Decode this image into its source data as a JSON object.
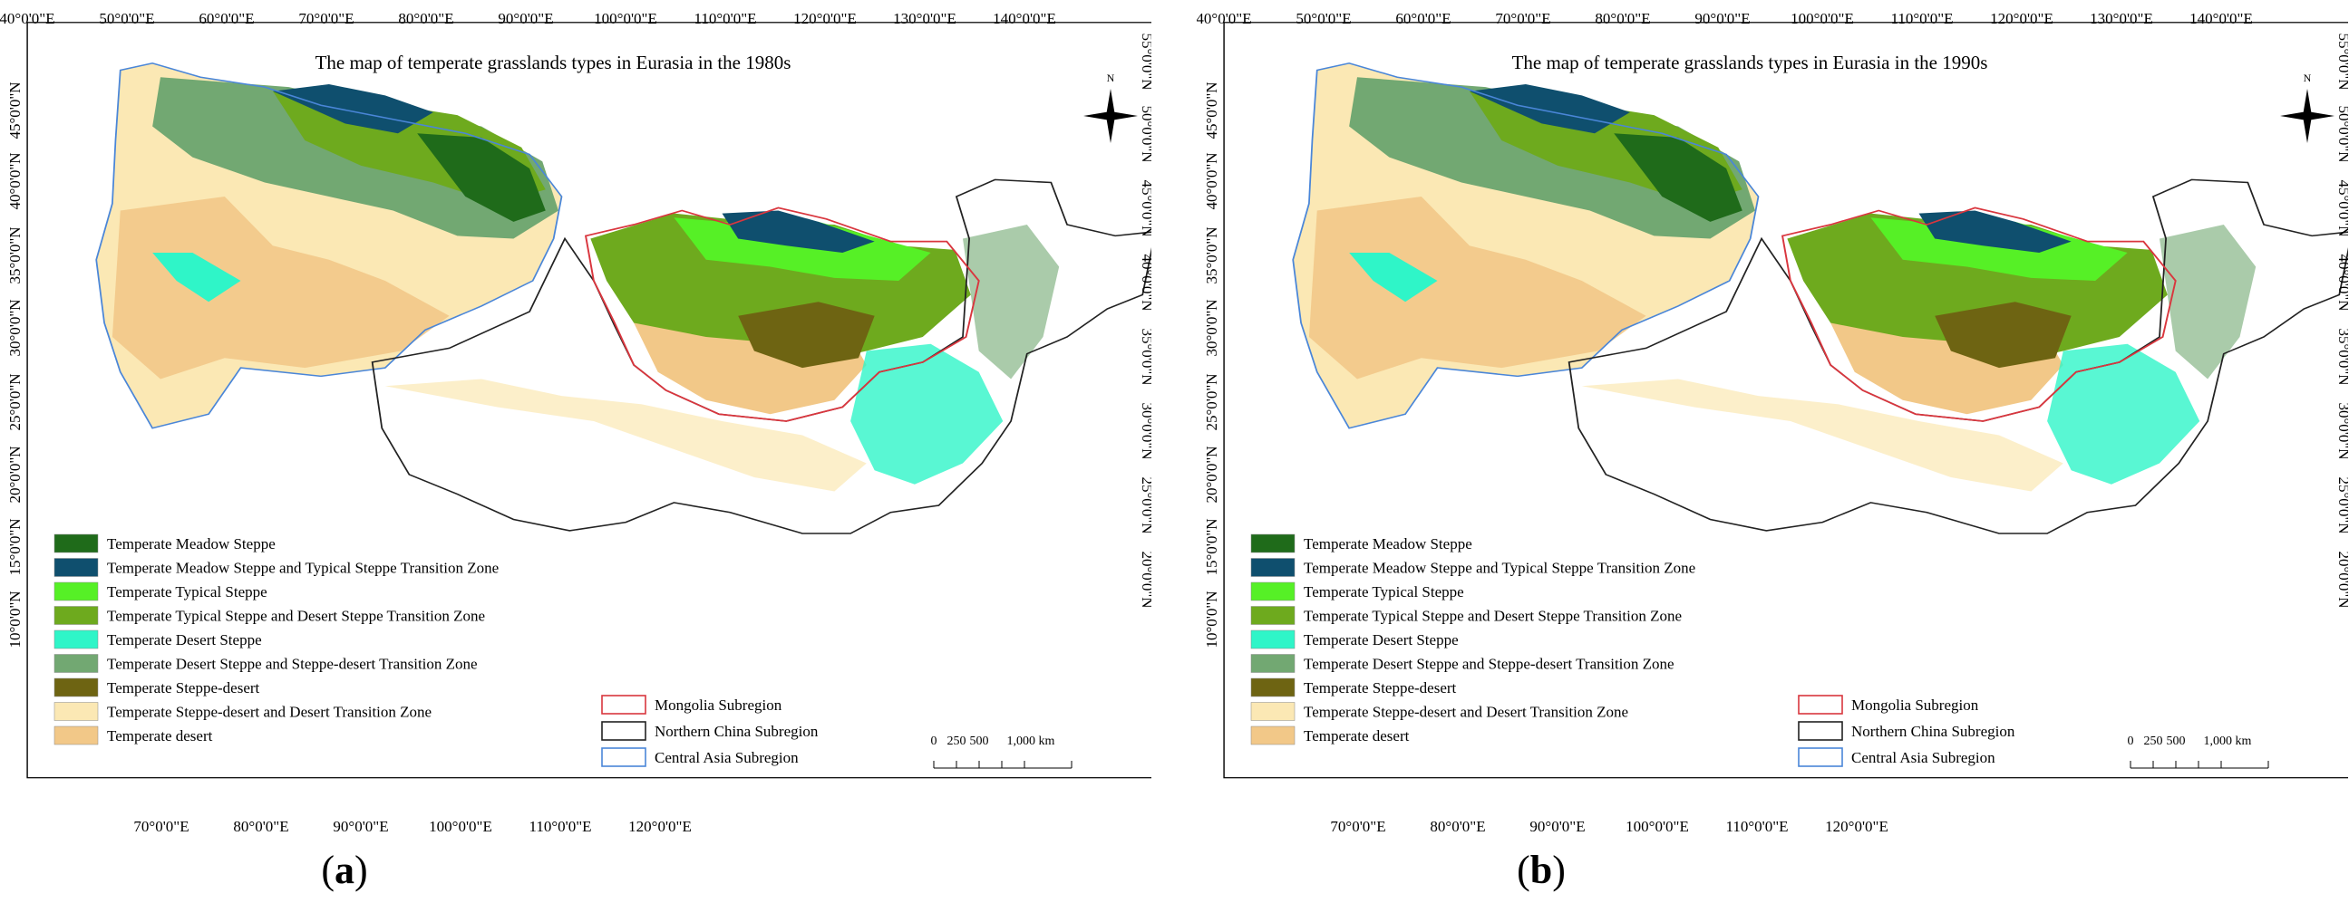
{
  "panels": [
    {
      "caption_letter": "a",
      "title": "The map of temperate grasslands types in Eurasia in the 1980s",
      "top_axis_labels": [
        "40°0'0\"E",
        "50°0'0\"E",
        "60°0'0\"E",
        "70°0'0\"E",
        "80°0'0\"E",
        "90°0'0\"E",
        "100°0'0\"E",
        "110°0'0\"E",
        "120°0'0\"E",
        "130°0'0\"E",
        "140°0'0\"E"
      ],
      "bottom_axis_labels": [
        "70°0'0\"E",
        "80°0'0\"E",
        "90°0'0\"E",
        "100°0'0\"E",
        "110°0'0\"E",
        "120°0'0\"E"
      ],
      "left_axis_labels": [
        "45°0'0\"N",
        "40°0'0\"N",
        "35°0'0\"N",
        "30°0'0\"N",
        "25°0'0\"N",
        "20°0'0\"N",
        "15°0'0\"N",
        "10°0'0\"N"
      ],
      "right_axis_labels": [
        "55°0'0\"N",
        "50°0'0\"N",
        "45°0'0\"N",
        "40°0'0\"N",
        "35°0'0\"N",
        "30°0'0\"N",
        "25°0'0\"N",
        "20°0'0\"N"
      ]
    },
    {
      "caption_letter": "b",
      "title": "The map of temperate grasslands types in Eurasia in the 1990s",
      "top_axis_labels": [
        "40°0'0\"E",
        "50°0'0\"E",
        "60°0'0\"E",
        "70°0'0\"E",
        "80°0'0\"E",
        "90°0'0\"E",
        "100°0'0\"E",
        "110°0'0\"E",
        "120°0'0\"E",
        "130°0'0\"E",
        "140°0'0\"E"
      ],
      "bottom_axis_labels": [
        "70°0'0\"E",
        "80°0'0\"E",
        "90°0'0\"E",
        "100°0'0\"E",
        "110°0'0\"E",
        "120°0'0\"E"
      ],
      "left_axis_labels": [
        "45°0'0\"N",
        "40°0'0\"N",
        "35°0'0\"N",
        "30°0'0\"N",
        "25°0'0\"N",
        "20°0'0\"N",
        "15°0'0\"N",
        "10°0'0\"N"
      ],
      "right_axis_labels": [
        "55°0'0\"N",
        "50°0'0\"N",
        "45°0'0\"N",
        "40°0'0\"N",
        "35°0'0\"N",
        "30°0'0\"N",
        "25°0'0\"N",
        "20°0'0\"N"
      ]
    }
  ],
  "legend_types": [
    {
      "label": "Temperate Meadow Steppe",
      "color": "#1f6b1a"
    },
    {
      "label": "Temperate Meadow Steppe and Typical Steppe Transition Zone",
      "color": "#0f4f6e"
    },
    {
      "label": "Temperate Typical Steppe",
      "color": "#56f026"
    },
    {
      "label": "Temperate Typical Steppe and Desert Steppe Transition Zone",
      "color": "#6eaa1e"
    },
    {
      "label": "Temperate Desert Steppe",
      "color": "#2ff5c8"
    },
    {
      "label": "Temperate Desert Steppe and Steppe-desert Transition Zone",
      "color": "#72a872"
    },
    {
      "label": "Temperate Steppe-desert",
      "color": "#6e6412"
    },
    {
      "label": "Temperate Steppe-desert and Desert Transition Zone",
      "color": "#fbe8b4"
    },
    {
      "label": "Temperate desert",
      "color": "#f2c888"
    }
  ],
  "legend_regions": [
    {
      "label": "Mongolia Subregion",
      "color": "#d9363e"
    },
    {
      "label": "Northern China Subregion",
      "color": "#222222"
    },
    {
      "label": "Central Asia Subregion",
      "color": "#4a86d8"
    }
  ],
  "north_label": "N",
  "scale_bar": {
    "ticks": [
      "0",
      "250",
      "500",
      "1,000 km"
    ]
  }
}
